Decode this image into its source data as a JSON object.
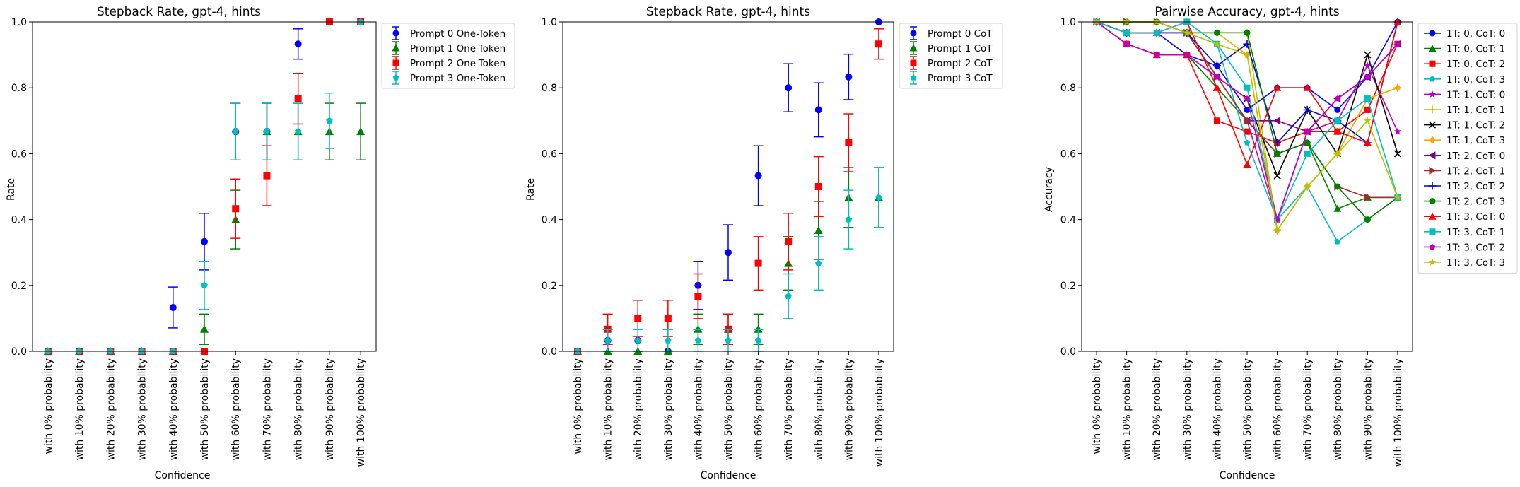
{
  "chart_data": [
    {
      "type": "scatter",
      "title": "Stepback Rate, gpt-4, hints",
      "xlabel": "Confidence",
      "ylabel": "Rate",
      "ylim": [
        0,
        1
      ],
      "yticks": [
        "0.0",
        "0.2",
        "0.4",
        "0.6",
        "0.8",
        "1.0"
      ],
      "categories": [
        "with 0% probability",
        "with 10% probability",
        "with 20% probability",
        "with 30% probability",
        "with 40% probability",
        "with 50% probability",
        "with 60% probability",
        "with 70% probability",
        "with 80% probability",
        "with 90% probability",
        "with 100% probability"
      ],
      "legend_position": "outside-right",
      "error_bars": true,
      "series": [
        {
          "name": "Prompt 0 One-Token",
          "color": "#0000ff",
          "marker": "circle",
          "values": [
            0,
            0,
            0,
            0,
            0.133,
            0.333,
            0.667,
            0.667,
            0.933,
            1.0,
            1.0
          ],
          "err": [
            0,
            0,
            0,
            0,
            0.062,
            0.086,
            0.086,
            0.086,
            0.046,
            0,
            0
          ]
        },
        {
          "name": "Prompt 1 One-Token",
          "color": "#008000",
          "marker": "triangle",
          "values": [
            0,
            0,
            0,
            0,
            0,
            0.067,
            0.4,
            0.667,
            0.667,
            0.667,
            0.667
          ],
          "err": [
            0,
            0,
            0,
            0,
            0,
            0.046,
            0.089,
            0.086,
            0.086,
            0.086,
            0.086
          ]
        },
        {
          "name": "Prompt 2 One-Token",
          "color": "#ff0000",
          "marker": "square",
          "values": [
            0,
            0,
            0,
            0,
            0,
            0,
            0.433,
            0.533,
            0.767,
            1.0,
            1.0
          ],
          "err": [
            0,
            0,
            0,
            0,
            0,
            0,
            0.09,
            0.091,
            0.077,
            0,
            0
          ]
        },
        {
          "name": "Prompt 3 One-Token",
          "color": "#00bfbf",
          "marker": "pentagon",
          "values": [
            0,
            0,
            0,
            0,
            0,
            0.2,
            0.667,
            0.667,
            0.667,
            0.7,
            1.0
          ],
          "err": [
            0,
            0,
            0,
            0,
            0,
            0.073,
            0.086,
            0.086,
            0.086,
            0.084,
            0
          ]
        }
      ]
    },
    {
      "type": "scatter",
      "title": "Stepback Rate, gpt-4, hints",
      "xlabel": "Confidence",
      "ylabel": "Rate",
      "ylim": [
        0,
        1
      ],
      "yticks": [
        "0.0",
        "0.2",
        "0.4",
        "0.6",
        "0.8",
        "1.0"
      ],
      "categories": [
        "with 0% probability",
        "with 10% probability",
        "with 20% probability",
        "with 30% probability",
        "with 40% probability",
        "with 50% probability",
        "with 60% probability",
        "with 70% probability",
        "with 80% probability",
        "with 90% probability",
        "with 100% probability"
      ],
      "legend_position": "outside-right",
      "error_bars": true,
      "series": [
        {
          "name": "Prompt 0 CoT",
          "color": "#0000ff",
          "marker": "circle",
          "values": [
            0,
            0.033,
            0.033,
            0,
            0.2,
            0.3,
            0.533,
            0.8,
            0.733,
            0.833,
            1.0
          ],
          "err": [
            0,
            0.033,
            0.033,
            0,
            0.073,
            0.084,
            0.091,
            0.073,
            0.082,
            0.069,
            0
          ]
        },
        {
          "name": "Prompt 1 CoT",
          "color": "#008000",
          "marker": "triangle",
          "values": [
            0,
            0,
            0,
            0,
            0.067,
            0.067,
            0.067,
            0.267,
            0.367,
            0.467,
            0.467
          ],
          "err": [
            0,
            0,
            0,
            0,
            0.046,
            0.046,
            0.046,
            0.081,
            0.088,
            0.091,
            0.091
          ]
        },
        {
          "name": "Prompt 2 CoT",
          "color": "#ff0000",
          "marker": "square",
          "values": [
            0,
            0.067,
            0.1,
            0.1,
            0.167,
            0.067,
            0.267,
            0.333,
            0.5,
            0.633,
            0.933
          ],
          "err": [
            0,
            0.046,
            0.055,
            0.055,
            0.068,
            0.046,
            0.081,
            0.086,
            0.091,
            0.088,
            0.046
          ]
        },
        {
          "name": "Prompt 3 CoT",
          "color": "#00bfbf",
          "marker": "pentagon",
          "values": [
            0,
            0.033,
            0.033,
            0.033,
            0.033,
            0.033,
            0.033,
            0.167,
            0.267,
            0.4,
            0.467
          ],
          "err": [
            0,
            0.033,
            0.033,
            0.033,
            0.033,
            0.033,
            0.033,
            0.068,
            0.081,
            0.089,
            0.091
          ]
        }
      ]
    },
    {
      "type": "line",
      "title": "Pairwise Accuracy, gpt-4, hints",
      "xlabel": "Confidence",
      "ylabel": "Accuracy",
      "ylim": [
        0,
        1
      ],
      "yticks": [
        "0.0",
        "0.2",
        "0.4",
        "0.6",
        "0.8",
        "1.0"
      ],
      "categories": [
        "with 0% probability",
        "with 10% probability",
        "with 20% probability",
        "with 30% probability",
        "with 40% probability",
        "with 50% probability",
        "with 60% probability",
        "with 70% probability",
        "with 80% probability",
        "with 90% probability",
        "with 100% probability"
      ],
      "legend_position": "outside-right",
      "series": [
        {
          "name": "1T: 0, CoT: 0",
          "color": "#0000ff",
          "marker": "circle",
          "values": [
            1.0,
            0.967,
            0.967,
            0.9,
            0.867,
            0.733,
            0.8,
            0.8,
            0.733,
            0.833,
            1.0
          ]
        },
        {
          "name": "1T: 0, CoT: 1",
          "color": "#008000",
          "marker": "triangle",
          "values": [
            1.0,
            0.933,
            0.9,
            0.9,
            0.8,
            0.7,
            0.6,
            0.633,
            0.433,
            0.467,
            0.467
          ]
        },
        {
          "name": "1T: 0, CoT: 2",
          "color": "#ff0000",
          "marker": "square",
          "values": [
            1.0,
            0.933,
            0.9,
            0.9,
            0.7,
            0.667,
            0.633,
            0.667,
            0.667,
            0.733,
            0.933
          ]
        },
        {
          "name": "1T: 0, CoT: 3",
          "color": "#00bfbf",
          "marker": "pentagon",
          "values": [
            1.0,
            0.967,
            0.967,
            0.967,
            0.933,
            0.633,
            0.4,
            0.5,
            0.333,
            0.4,
            0.467
          ]
        },
        {
          "name": "1T: 1, CoT: 0",
          "color": "#bf00bf",
          "marker": "star",
          "values": [
            1.0,
            0.933,
            0.9,
            0.9,
            0.833,
            0.7,
            0.4,
            0.667,
            0.7,
            0.867,
            0.667
          ]
        },
        {
          "name": "1T: 1, CoT: 1",
          "color": "#bfbf00",
          "marker": "plus",
          "values": [
            1.0,
            1.0,
            1.0,
            0.967,
            0.967,
            0.967,
            0.367,
            0.5,
            0.6,
            0.767,
            0.8
          ]
        },
        {
          "name": "1T: 1, CoT: 2",
          "color": "#000000",
          "marker": "x",
          "values": [
            1.0,
            0.967,
            0.967,
            0.967,
            0.833,
            0.767,
            0.533,
            0.733,
            0.6,
            0.9,
            0.6
          ]
        },
        {
          "name": "1T: 1, CoT: 3",
          "color": "#ffa500",
          "marker": "diamond",
          "values": [
            1.0,
            1.0,
            1.0,
            0.967,
            0.967,
            0.9,
            0.367,
            0.5,
            0.6,
            0.767,
            0.8
          ]
        },
        {
          "name": "1T: 2, CoT: 0",
          "color": "#800080",
          "marker": "tri-left",
          "values": [
            1.0,
            0.967,
            0.967,
            0.967,
            0.833,
            0.7,
            0.7,
            0.667,
            0.767,
            0.833,
            0.933
          ]
        },
        {
          "name": "1T: 2, CoT: 1",
          "color": "#a52a2a",
          "marker": "tri-right",
          "values": [
            1.0,
            1.0,
            1.0,
            0.967,
            0.833,
            0.7,
            0.6,
            0.633,
            0.5,
            0.467,
            0.467
          ]
        },
        {
          "name": "1T: 2, CoT: 2",
          "color": "#0000cd",
          "marker": "plus",
          "values": [
            1.0,
            0.967,
            0.967,
            0.967,
            0.867,
            0.933,
            0.633,
            0.733,
            0.7,
            0.633,
            1.0
          ]
        },
        {
          "name": "1T: 2, CoT: 3",
          "color": "#008000",
          "marker": "circle",
          "values": [
            1.0,
            1.0,
            1.0,
            0.967,
            0.967,
            0.967,
            0.6,
            0.633,
            0.5,
            0.4,
            0.467
          ]
        },
        {
          "name": "1T: 3, CoT: 0",
          "color": "#ff0000",
          "marker": "triangle",
          "values": [
            1.0,
            0.967,
            0.967,
            1.0,
            0.8,
            0.567,
            0.8,
            0.8,
            0.667,
            0.633,
            1.0
          ]
        },
        {
          "name": "1T: 3, CoT: 1",
          "color": "#00bfbf",
          "marker": "square",
          "values": [
            1.0,
            0.967,
            0.967,
            1.0,
            0.933,
            0.8,
            0.4,
            0.6,
            0.7,
            0.767,
            0.467
          ]
        },
        {
          "name": "1T: 3, CoT: 2",
          "color": "#bf00bf",
          "marker": "pentagon",
          "values": [
            1.0,
            0.933,
            0.9,
            0.9,
            0.833,
            0.767,
            0.4,
            0.667,
            0.767,
            0.833,
            0.933
          ]
        },
        {
          "name": "1T: 3, CoT: 3",
          "color": "#bfbf00",
          "marker": "star",
          "values": [
            1.0,
            1.0,
            1.0,
            0.967,
            0.933,
            0.9,
            0.367,
            0.5,
            0.6,
            0.7,
            0.467
          ]
        }
      ]
    }
  ]
}
